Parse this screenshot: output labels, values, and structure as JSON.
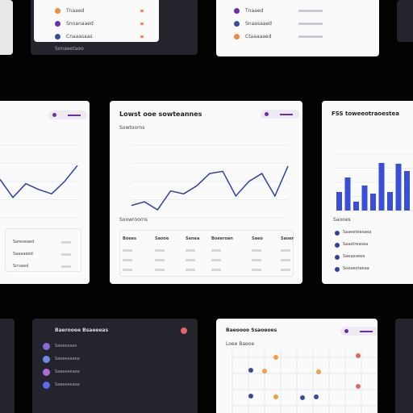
{
  "top_left": {
    "rows": [
      "Tnaaed",
      "Snnanaaed",
      "Cnaaasaas"
    ],
    "footer": "Sonaeetaeo"
  },
  "top_center": {
    "rows": [
      "Tnaaed",
      "Snaasaaed",
      "Ctaaaaaed"
    ]
  },
  "left": {
    "chart": {
      "type": "line",
      "values": [
        53,
        28,
        47,
        39,
        33,
        50,
        72
      ],
      "ylim": [
        0,
        100
      ],
      "color": "#2f3fa8"
    },
    "table_rows": [
      "Sareseaed",
      "Saaaaeed",
      "Srrsaed"
    ]
  },
  "center": {
    "title": "Lowst ooe sowteannes",
    "subtitle": "Sowtoorns",
    "chart": {
      "type": "line",
      "values": [
        17,
        22,
        11,
        37,
        33,
        44,
        61,
        64,
        30,
        50,
        61,
        30,
        71
      ],
      "ylim": [
        0,
        100
      ],
      "color": "#2f3fa8"
    },
    "table_title": "Soowroorns",
    "table_headers": [
      "Boees",
      "Saooe",
      "Senea",
      "Boeeroan",
      "Saeo",
      "Saoer"
    ]
  },
  "right": {
    "title": "FSS toweeotraoestea",
    "chart": {
      "type": "bar",
      "values": [
        23,
        41,
        11,
        31,
        21,
        59,
        23,
        58,
        49
      ],
      "ylim": [
        0,
        70
      ],
      "color": "#3b4ed8"
    },
    "list_title": "Saooes",
    "list": [
      "Saaeeteesaea",
      "Saaatreasea",
      "Saeaeseea",
      "Sooaeotaeaa"
    ]
  },
  "bottom_left": {
    "title": "Baerooee Bsaeeeas",
    "items": [
      "Saeeeoaes",
      "Saeeeeaeee",
      "Saaeeeeaee",
      "Saaeeeeaae"
    ]
  },
  "bottom_center": {
    "title": "Baeoooo Ssaoeoes",
    "subtitle": "Loee Baeoe"
  }
}
